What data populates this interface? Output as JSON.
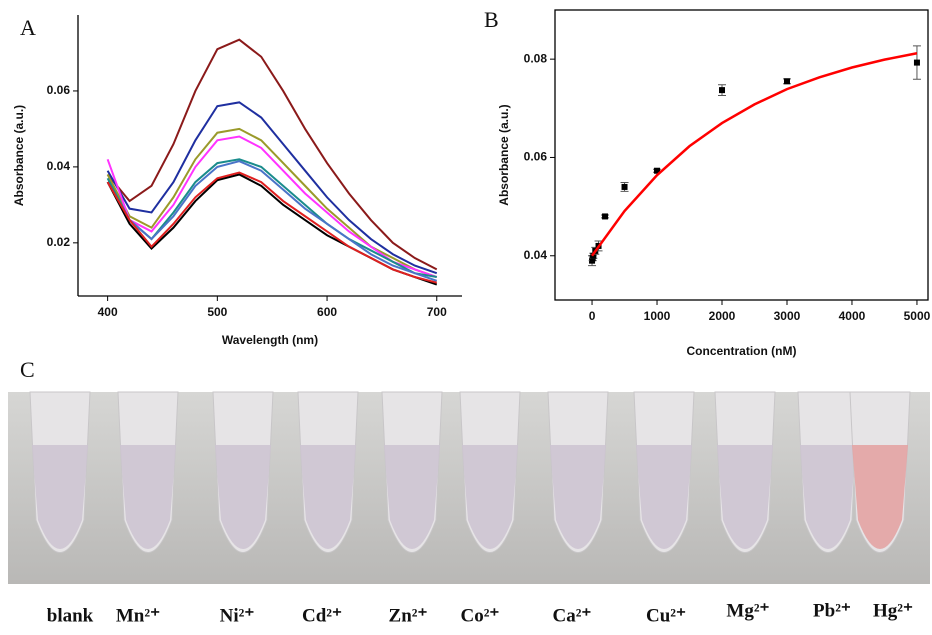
{
  "chart_data": [
    {
      "type": "line",
      "panel_label": "A",
      "xlabel": "Wavelength (nm)",
      "ylabel": "Absorbance (a.u.)",
      "x": [
        400,
        420,
        440,
        460,
        480,
        500,
        520,
        540,
        560,
        580,
        600,
        620,
        640,
        660,
        680,
        700
      ],
      "series": [
        {
          "color": "#8b1a1a",
          "values": [
            0.038,
            0.031,
            0.035,
            0.046,
            0.06,
            0.071,
            0.0735,
            0.069,
            0.06,
            0.05,
            0.041,
            0.033,
            0.026,
            0.02,
            0.016,
            0.013
          ]
        },
        {
          "color": "#1f2fa0",
          "values": [
            0.039,
            0.029,
            0.028,
            0.036,
            0.047,
            0.056,
            0.057,
            0.053,
            0.046,
            0.039,
            0.032,
            0.026,
            0.021,
            0.017,
            0.014,
            0.012
          ]
        },
        {
          "color": "#9a9a2a",
          "values": [
            0.038,
            0.027,
            0.024,
            0.032,
            0.042,
            0.049,
            0.05,
            0.047,
            0.041,
            0.035,
            0.029,
            0.024,
            0.019,
            0.016,
            0.013,
            0.011
          ]
        },
        {
          "color": "#ff33ff",
          "values": [
            0.042,
            0.026,
            0.023,
            0.03,
            0.04,
            0.047,
            0.048,
            0.045,
            0.039,
            0.033,
            0.028,
            0.023,
            0.019,
            0.015,
            0.013,
            0.011
          ]
        },
        {
          "color": "#1a8c8c",
          "values": [
            0.037,
            0.026,
            0.021,
            0.028,
            0.036,
            0.041,
            0.042,
            0.04,
            0.035,
            0.03,
            0.025,
            0.021,
            0.018,
            0.015,
            0.012,
            0.011
          ]
        },
        {
          "color": "#4a74c8",
          "values": [
            0.036,
            0.026,
            0.021,
            0.027,
            0.035,
            0.04,
            0.0415,
            0.039,
            0.034,
            0.029,
            0.025,
            0.021,
            0.017,
            0.014,
            0.012,
            0.01
          ]
        },
        {
          "color": "#000000",
          "values": [
            0.036,
            0.025,
            0.0185,
            0.024,
            0.031,
            0.0365,
            0.038,
            0.035,
            0.03,
            0.026,
            0.022,
            0.019,
            0.016,
            0.013,
            0.011,
            0.009
          ]
        },
        {
          "color": "#e02020",
          "values": [
            0.036,
            0.026,
            0.019,
            0.025,
            0.032,
            0.037,
            0.0385,
            0.036,
            0.031,
            0.027,
            0.023,
            0.019,
            0.016,
            0.013,
            0.011,
            0.0095
          ]
        }
      ],
      "xlim": [
        373,
        723
      ],
      "ylim": [
        0.006,
        0.08
      ],
      "xticks": [
        400,
        500,
        600,
        700
      ],
      "yticks": [
        0.02,
        0.04,
        0.06
      ],
      "box": false
    },
    {
      "type": "scatter",
      "panel_label": "B",
      "xlabel": "Concentration (nM)",
      "ylabel": "Absorbance (a.u.)",
      "series": [
        {
          "color": "#000000",
          "x": [
            0,
            10,
            20,
            50,
            100,
            200,
            500,
            1000,
            2000,
            3000,
            5000
          ],
          "values": [
            0.039,
            0.0395,
            0.04,
            0.041,
            0.042,
            0.048,
            0.054,
            0.0573,
            0.0737,
            0.0755,
            0.0793
          ],
          "errors": [
            0.001,
            0.0005,
            0.0005,
            0.0007,
            0.001,
            0.0003,
            0.0009,
            0.0003,
            0.0011,
            0.0005,
            0.0034
          ]
        },
        {
          "color": "#ff0000",
          "style": "line",
          "x": [
            0,
            500,
            1000,
            1500,
            2000,
            2500,
            3000,
            3500,
            4000,
            4500,
            5000
          ],
          "values": [
            0.04,
            0.0491,
            0.0564,
            0.0623,
            0.067,
            0.0708,
            0.0739,
            0.0763,
            0.0783,
            0.0799,
            0.0812
          ]
        }
      ],
      "xlim": [
        -570,
        5170
      ],
      "ylim": [
        0.031,
        0.09
      ],
      "xticks": [
        0,
        1000,
        2000,
        3000,
        4000,
        5000
      ],
      "yticks": [
        0.04,
        0.06,
        0.08
      ],
      "box": true
    }
  ],
  "photo": {
    "panel_label": "C",
    "labels": [
      "blank",
      "Mn²⁺",
      "Ni²⁺",
      "Cd²⁺",
      "Zn²⁺",
      "Co²⁺",
      "Ca²⁺",
      "Cu²⁺",
      "Mg²⁺",
      "Pb²⁺",
      "Hg²⁺"
    ]
  }
}
